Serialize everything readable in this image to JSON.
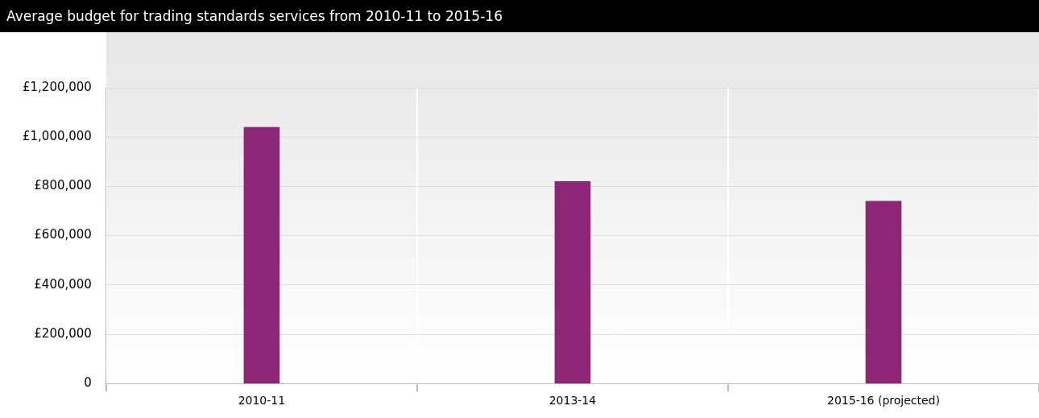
{
  "chart_data": {
    "type": "bar",
    "title": "Average budget for trading standards services from 2010-11 to 2015-16",
    "categories": [
      "2010-11",
      "2013-14",
      "2015-16 (projected)"
    ],
    "values": [
      1040000,
      820000,
      740000
    ],
    "color": "#8e2678",
    "ylim": [
      0,
      1200000
    ],
    "yticks": [
      0,
      {
        "value": 200000,
        "label": "£200,000"
      },
      {
        "value": 400000,
        "label": "£400,000"
      },
      {
        "value": 600000,
        "label": "£600,000"
      },
      {
        "value": 800000,
        "label": "£800,000"
      },
      {
        "value": 1000000,
        "label": "£1,000,000"
      },
      {
        "value": 1200000,
        "label": "£1,200,000"
      }
    ],
    "grid": true,
    "legend": false
  }
}
